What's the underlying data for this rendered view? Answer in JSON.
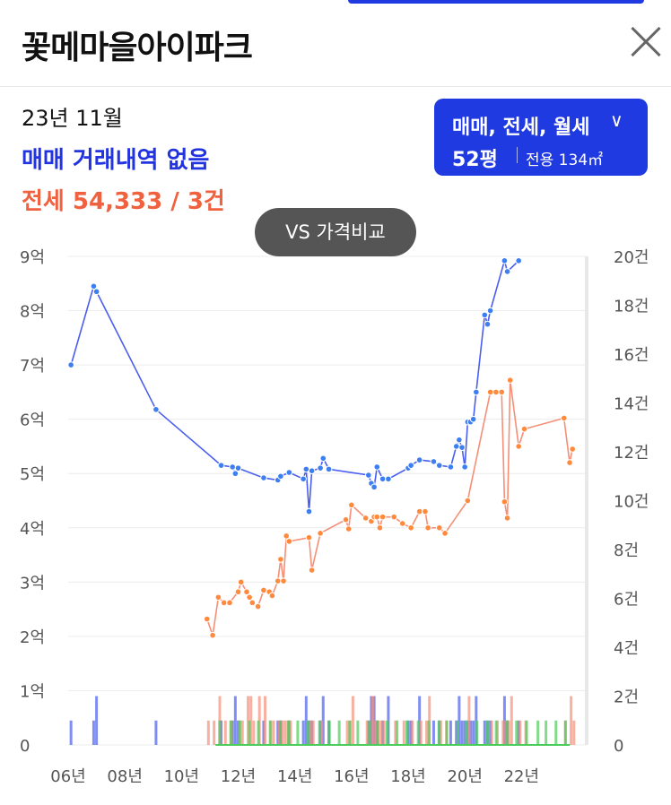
{
  "header": {
    "title": "꽃메마을아이파크"
  },
  "summary": {
    "date": "23년 11월",
    "sale_status": "매매 거래내역 없음",
    "jeonse_status": "전세 54,333 / 3건"
  },
  "filter": {
    "types": "매매, 전세, 월세",
    "size": "52평",
    "area": "전용 134㎡"
  },
  "compare_button": "VS 가격비교",
  "colors": {
    "sale": "#4a5ef0",
    "sale_point": "#3d7ff0",
    "jeonse": "#f58f78",
    "monthly": "#4ccc5a",
    "accent": "#1f3ae0"
  },
  "chart_data": {
    "type": "line",
    "y_left": {
      "labels": [
        "0",
        "1억",
        "2억",
        "3억",
        "4억",
        "5억",
        "6억",
        "7억",
        "8억",
        "9억"
      ],
      "range": [
        0,
        9
      ]
    },
    "y_right": {
      "labels": [
        "0",
        "2건",
        "4건",
        "6건",
        "8건",
        "10건",
        "12건",
        "14건",
        "16건",
        "18건",
        "20건"
      ],
      "range": [
        0,
        20
      ]
    },
    "x": {
      "labels": [
        "06년",
        "08년",
        "10년",
        "12년",
        "14년",
        "16년",
        "18년",
        "20년",
        "22년"
      ],
      "range": [
        2006,
        2024.3
      ],
      "tick_positions": [
        2006,
        2008,
        2010,
        2012,
        2014,
        2016,
        2018,
        2020,
        2022
      ]
    },
    "grid": true,
    "series": [
      {
        "key": "sale",
        "values": [
          [
            2006.1,
            7.0
          ],
          [
            2006.9,
            8.45
          ],
          [
            2007.0,
            8.35
          ],
          [
            2009.1,
            6.18
          ],
          [
            2011.4,
            5.15
          ],
          [
            2011.8,
            5.12
          ],
          [
            2011.9,
            5.0
          ],
          [
            2012.0,
            5.1
          ],
          [
            2012.9,
            4.92
          ],
          [
            2013.4,
            4.88
          ],
          [
            2013.5,
            4.95
          ],
          [
            2013.8,
            5.02
          ],
          [
            2014.3,
            4.9
          ],
          [
            2014.4,
            5.08
          ],
          [
            2014.5,
            4.3
          ],
          [
            2014.6,
            5.05
          ],
          [
            2014.9,
            5.1
          ],
          [
            2015.0,
            5.28
          ],
          [
            2015.2,
            5.08
          ],
          [
            2016.6,
            4.97
          ],
          [
            2016.7,
            4.82
          ],
          [
            2016.8,
            4.75
          ],
          [
            2016.9,
            5.12
          ],
          [
            2017.1,
            4.9
          ],
          [
            2017.3,
            4.9
          ],
          [
            2018.0,
            5.1
          ],
          [
            2018.1,
            5.15
          ],
          [
            2018.4,
            5.25
          ],
          [
            2018.9,
            5.22
          ],
          [
            2019.1,
            5.15
          ],
          [
            2019.5,
            5.12
          ],
          [
            2019.7,
            5.5
          ],
          [
            2019.8,
            5.62
          ],
          [
            2019.9,
            5.48
          ],
          [
            2020.0,
            5.12
          ],
          [
            2020.1,
            5.95
          ],
          [
            2020.2,
            5.95
          ],
          [
            2020.3,
            6.0
          ],
          [
            2020.4,
            6.5
          ],
          [
            2020.7,
            7.92
          ],
          [
            2020.8,
            7.75
          ],
          [
            2020.9,
            8.0
          ],
          [
            2021.4,
            8.92
          ],
          [
            2021.5,
            8.72
          ],
          [
            2021.9,
            8.92
          ]
        ]
      },
      {
        "key": "jeonse",
        "values": [
          [
            2010.9,
            2.32
          ],
          [
            2011.1,
            2.02
          ],
          [
            2011.3,
            2.72
          ],
          [
            2011.5,
            2.62
          ],
          [
            2011.7,
            2.62
          ],
          [
            2012.0,
            2.82
          ],
          [
            2012.1,
            3.0
          ],
          [
            2012.3,
            2.82
          ],
          [
            2012.4,
            2.72
          ],
          [
            2012.5,
            2.62
          ],
          [
            2012.7,
            2.55
          ],
          [
            2012.9,
            2.85
          ],
          [
            2013.1,
            2.82
          ],
          [
            2013.2,
            2.75
          ],
          [
            2013.4,
            3.02
          ],
          [
            2013.5,
            3.42
          ],
          [
            2013.6,
            3.02
          ],
          [
            2013.7,
            3.85
          ],
          [
            2013.8,
            3.75
          ],
          [
            2014.5,
            3.82
          ],
          [
            2014.6,
            3.22
          ],
          [
            2014.9,
            3.9
          ],
          [
            2015.8,
            4.15
          ],
          [
            2015.9,
            3.98
          ],
          [
            2016.0,
            4.42
          ],
          [
            2016.5,
            4.18
          ],
          [
            2016.7,
            4.12
          ],
          [
            2016.8,
            4.2
          ],
          [
            2016.9,
            4.2
          ],
          [
            2017.0,
            4.0
          ],
          [
            2017.1,
            4.2
          ],
          [
            2017.5,
            4.2
          ],
          [
            2017.8,
            4.08
          ],
          [
            2018.1,
            4.0
          ],
          [
            2018.4,
            4.3
          ],
          [
            2018.6,
            4.3
          ],
          [
            2018.7,
            4.0
          ],
          [
            2019.1,
            4.0
          ],
          [
            2019.3,
            3.9
          ],
          [
            2020.1,
            4.5
          ],
          [
            2020.9,
            6.5
          ],
          [
            2021.1,
            6.5
          ],
          [
            2021.3,
            6.5
          ],
          [
            2021.4,
            4.48
          ],
          [
            2021.5,
            4.18
          ],
          [
            2021.6,
            6.72
          ],
          [
            2021.9,
            5.5
          ],
          [
            2022.1,
            5.82
          ],
          [
            2023.5,
            6.02
          ],
          [
            2023.7,
            5.2
          ],
          [
            2023.8,
            5.45
          ]
        ]
      }
    ]
  }
}
